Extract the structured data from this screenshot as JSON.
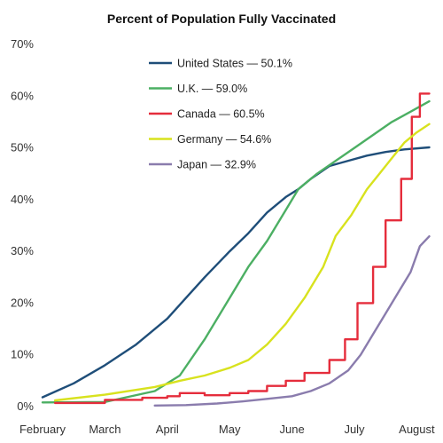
{
  "chart_data": {
    "type": "line",
    "title": "Percent of Population Fully Vaccinated",
    "xlabel": "",
    "ylabel": "",
    "x_ticks": [
      "February",
      "March",
      "April",
      "May",
      "June",
      "July",
      "August"
    ],
    "y_ticks": [
      "0%",
      "10%",
      "20%",
      "30%",
      "40%",
      "50%",
      "60%",
      "70%"
    ],
    "ylim": [
      0,
      70
    ],
    "xlim": [
      0,
      6.25
    ],
    "grid": false,
    "legend_position": "top-center",
    "series": [
      {
        "name": "United States — 50.1%",
        "color": "#1f4e79",
        "x": [
          0,
          0.5,
          1,
          1.5,
          2,
          2.3,
          2.6,
          3,
          3.3,
          3.6,
          3.9,
          4.1,
          4.3,
          4.6,
          4.9,
          5.2,
          5.5,
          5.8,
          6.2
        ],
        "y": [
          1.8,
          4.5,
          8,
          12,
          17,
          21,
          25,
          30,
          33.5,
          37.5,
          40.5,
          42,
          44,
          46.5,
          47.5,
          48.5,
          49.2,
          49.7,
          50.1
        ]
      },
      {
        "name": "U.K. — 59.0%",
        "color": "#4caf63",
        "x": [
          0,
          1,
          1.8,
          2.2,
          2.6,
          3,
          3.3,
          3.6,
          3.9,
          4.1,
          4.4,
          4.7,
          5,
          5.3,
          5.6,
          5.9,
          6.2
        ],
        "y": [
          0.8,
          0.9,
          3,
          6,
          13,
          21,
          27,
          32,
          38,
          42,
          45,
          47.5,
          50,
          52.5,
          55,
          57,
          59
        ]
      },
      {
        "name": "Canada — 60.5%",
        "color": "#e52d3c",
        "step": true,
        "x": [
          0.2,
          1,
          1.6,
          2,
          2.2,
          2.6,
          3,
          3.3,
          3.6,
          3.9,
          4.2,
          4.6,
          4.85,
          5.05,
          5.3,
          5.5,
          5.75,
          5.92,
          6.05,
          6.2
        ],
        "y": [
          0.7,
          1.3,
          1.7,
          2,
          2.6,
          2.2,
          2.6,
          3,
          4,
          5,
          6.5,
          9,
          13,
          20,
          27,
          36,
          44,
          56,
          60.5,
          60.5
        ]
      },
      {
        "name": "Germany — 54.6%",
        "color": "#d8e21e",
        "x": [
          0.2,
          1,
          1.8,
          2.2,
          2.6,
          3,
          3.3,
          3.6,
          3.9,
          4.2,
          4.5,
          4.7,
          4.95,
          5.2,
          5.4,
          5.6,
          5.8,
          6,
          6.2
        ],
        "y": [
          1.2,
          2.3,
          3.8,
          5,
          6,
          7.5,
          9,
          12,
          16,
          21,
          27,
          33,
          37,
          42,
          45,
          48,
          51,
          53,
          54.6
        ]
      },
      {
        "name": "Japan — 32.9%",
        "color": "#8a7cad",
        "x": [
          1.8,
          2.3,
          2.8,
          3.2,
          3.6,
          4,
          4.3,
          4.6,
          4.9,
          5.1,
          5.3,
          5.5,
          5.7,
          5.9,
          6.05,
          6.2
        ],
        "y": [
          0.2,
          0.3,
          0.6,
          1,
          1.5,
          2,
          3,
          4.5,
          7,
          10,
          14,
          18,
          22,
          26,
          31,
          32.9
        ]
      }
    ]
  }
}
